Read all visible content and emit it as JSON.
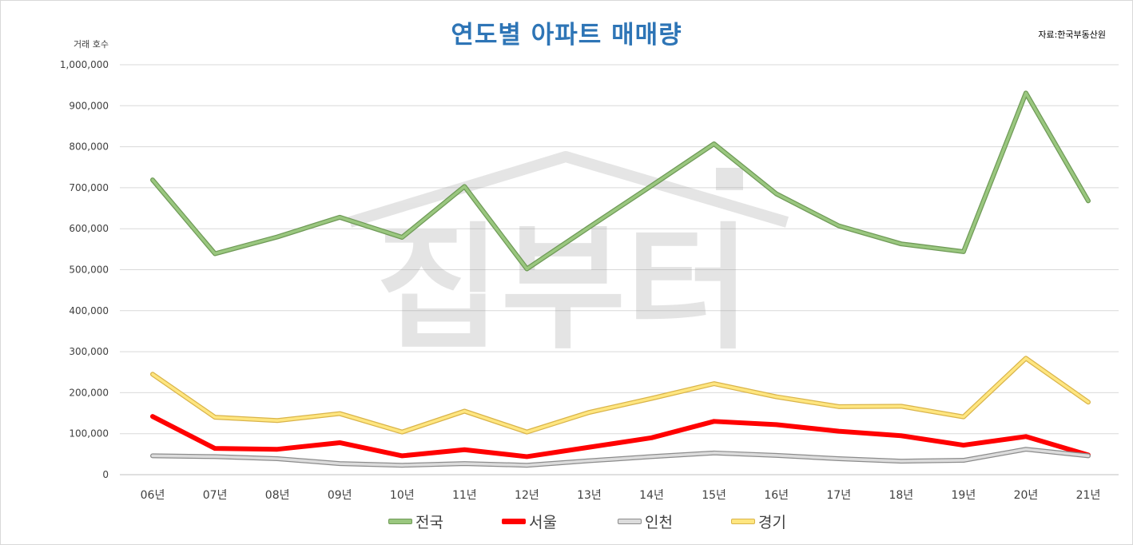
{
  "chart_data": {
    "type": "line",
    "title": "연도별 아파트 매매량",
    "source": "자료:한국부동산원",
    "ylabel": "거래 호수",
    "xlabel": "",
    "ylim": [
      0,
      1000000
    ],
    "yticks": [
      0,
      100000,
      200000,
      300000,
      400000,
      500000,
      600000,
      700000,
      800000,
      900000,
      1000000
    ],
    "ytick_labels": [
      "0",
      "100,000",
      "200,000",
      "300,000",
      "400,000",
      "500,000",
      "600,000",
      "700,000",
      "800,000",
      "900,000",
      "1,000,000"
    ],
    "categories": [
      "06년",
      "07년",
      "08년",
      "09년",
      "10년",
      "11년",
      "12년",
      "13년",
      "14년",
      "15년",
      "16년",
      "17년",
      "18년",
      "19년",
      "20년",
      "21년"
    ],
    "grid": true,
    "legend_position": "bottom",
    "series": [
      {
        "name": "전국",
        "color": "#9ac77f",
        "edge": "#6f9a57",
        "values": [
          719000,
          539000,
          580000,
          628000,
          579000,
          703000,
          502000,
          604000,
          705000,
          807000,
          685000,
          607000,
          563000,
          544000,
          931000,
          668000
        ]
      },
      {
        "name": "서울",
        "color": "#ff0000",
        "edge": "#ff0000",
        "values": [
          142000,
          64000,
          62000,
          78000,
          46000,
          61000,
          44000,
          67000,
          90000,
          130000,
          122000,
          106000,
          95000,
          72000,
          93000,
          48000
        ]
      },
      {
        "name": "인천",
        "color": "#dcdcdc",
        "edge": "#8c8c8c",
        "values": [
          46000,
          44000,
          39000,
          27000,
          23000,
          27000,
          23000,
          34000,
          44000,
          53000,
          47000,
          39000,
          33000,
          35000,
          62000,
          46000
        ]
      },
      {
        "name": "경기",
        "color": "#ffe680",
        "edge": "#d9b44a",
        "values": [
          245000,
          140000,
          132000,
          149000,
          104000,
          155000,
          104000,
          152000,
          186000,
          222000,
          190000,
          166000,
          167000,
          141000,
          284000,
          177000
        ]
      }
    ],
    "watermark": "집부터"
  }
}
